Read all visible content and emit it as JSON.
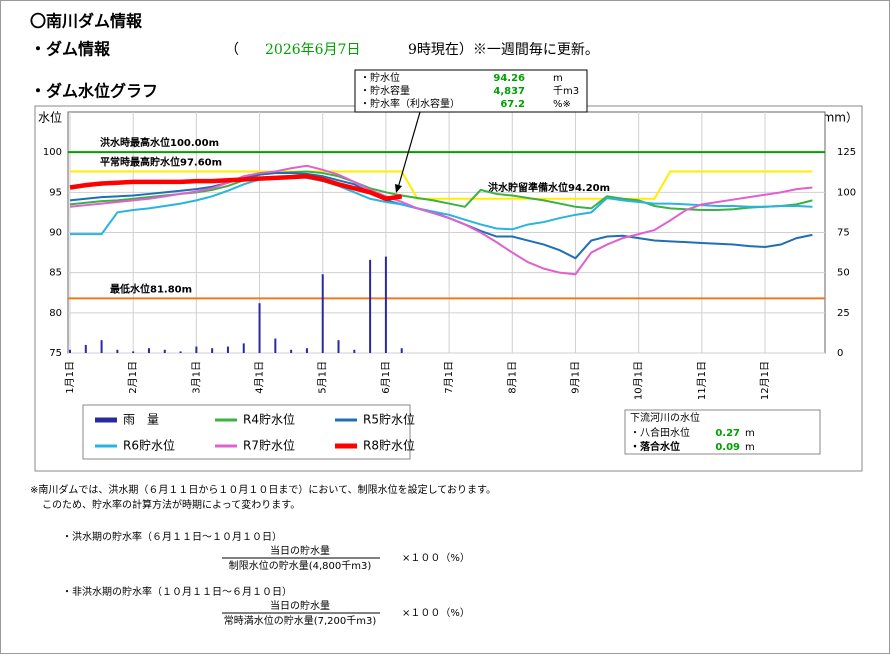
{
  "header": {
    "title": "〇南川ダム情報",
    "section1": "・ダム情報",
    "open_paren": "（",
    "date": "2026年6月7日",
    "time_note": "9時現在）※一週間毎に更新。",
    "section2": "・ダム水位グラフ"
  },
  "info_box": {
    "rows": [
      {
        "label": "・貯水位",
        "value": "94.26",
        "unit": "m"
      },
      {
        "label": "・貯水容量",
        "value": "4,837",
        "unit": "千m3"
      },
      {
        "label": "・貯水率（利水容量）",
        "value": "67.2",
        "unit": "%※"
      }
    ]
  },
  "chart_data": {
    "type": "line",
    "ylabel": "水位（m）",
    "y2label": "雨量（mm）",
    "categories": [
      "1月1日",
      null,
      null,
      null,
      "2月1日",
      null,
      null,
      null,
      "3月1日",
      null,
      null,
      null,
      "4月1日",
      null,
      null,
      null,
      "5月1日",
      null,
      null,
      null,
      "6月1日",
      null,
      null,
      null,
      "7月1日",
      null,
      null,
      null,
      "8月1日",
      null,
      null,
      null,
      "9月1日",
      null,
      null,
      null,
      "10月1日",
      null,
      null,
      null,
      "11月1日",
      null,
      null,
      null,
      "12月1日",
      null,
      null,
      null
    ],
    "ylim": [
      75,
      105
    ],
    "yticks": [
      75,
      80,
      85,
      90,
      95,
      100
    ],
    "y2lim": [
      0,
      150
    ],
    "y2ticks": [
      0,
      25,
      50,
      75,
      100,
      125
    ],
    "grid": true,
    "reference_lines": [
      {
        "label": "洪水時最高水位100.00m",
        "value": 100,
        "color": "#00a000"
      },
      {
        "label": "平常時最高貯水位97.60m",
        "value": 97.6
      },
      {
        "label": "洪水貯留準備水位94.20m",
        "value": 94.2
      },
      {
        "label": "最低水位81.80m",
        "value": 81.8,
        "color": "#f07820"
      }
    ],
    "series": [
      {
        "name": "雨　量",
        "type": "bar",
        "axis": "y2",
        "color": "#2a2aa0",
        "values": [
          2,
          5,
          8,
          2,
          1,
          3,
          2,
          1,
          4,
          3,
          4,
          6,
          31,
          9,
          2,
          3,
          49,
          8,
          2,
          58,
          60,
          3,
          null,
          null,
          null,
          null,
          null,
          null,
          null,
          null,
          null,
          null,
          null,
          null,
          null,
          null,
          null,
          null,
          null,
          null,
          null,
          null,
          null,
          null,
          null,
          null,
          null,
          null
        ]
      },
      {
        "color": "#ffee00",
        "values": [
          97.6,
          97.6,
          97.6,
          97.6,
          97.6,
          97.6,
          97.6,
          97.6,
          97.6,
          97.6,
          97.6,
          97.6,
          97.6,
          97.6,
          97.6,
          97.6,
          97.6,
          97.6,
          97.6,
          97.6,
          97.6,
          97.6,
          94.2,
          94.2,
          94.2,
          94.2,
          94.2,
          94.2,
          94.2,
          94.2,
          94.2,
          94.2,
          94.2,
          94.2,
          94.2,
          94.2,
          94.2,
          94.2,
          97.6,
          97.6,
          97.6,
          97.6,
          97.6,
          97.6,
          97.6,
          97.6,
          97.6,
          97.6
        ]
      },
      {
        "name": "R4貯水位",
        "color": "#3cb043",
        "values": [
          93.5,
          93.7,
          93.9,
          94.0,
          94.2,
          94.4,
          94.6,
          94.8,
          95.0,
          95.3,
          95.8,
          96.5,
          97.2,
          97.4,
          97.5,
          97.6,
          97.4,
          97.0,
          96.3,
          95.5,
          95.0,
          94.6,
          94.3,
          94.0,
          93.6,
          93.2,
          95.3,
          94.8,
          94.6,
          94.3,
          94.0,
          93.6,
          93.2,
          93.0,
          94.5,
          94.2,
          94.0,
          93.3,
          93.0,
          92.9,
          92.8,
          92.8,
          92.9,
          93.1,
          93.2,
          93.3,
          93.5,
          94.0
        ]
      },
      {
        "name": "R5貯水位",
        "color": "#1f6fb5",
        "values": [
          94.0,
          94.2,
          94.4,
          94.5,
          94.6,
          94.8,
          95.0,
          95.2,
          95.4,
          95.7,
          96.2,
          96.8,
          97.2,
          97.4,
          97.4,
          97.3,
          97.0,
          96.5,
          96.0,
          95.0,
          94.0,
          93.5,
          93.0,
          92.5,
          91.8,
          91.0,
          90.2,
          89.5,
          89.5,
          89.0,
          88.5,
          87.8,
          86.8,
          89.0,
          89.5,
          89.6,
          89.3,
          89.0,
          88.9,
          88.8,
          88.7,
          88.6,
          88.5,
          88.3,
          88.2,
          88.5,
          89.3,
          89.7
        ]
      },
      {
        "name": "R6貯水位",
        "color": "#27b4e0",
        "values": [
          89.8,
          89.8,
          89.8,
          92.5,
          92.8,
          93.0,
          93.3,
          93.6,
          94.0,
          94.5,
          95.2,
          96.0,
          96.6,
          96.9,
          97.0,
          96.8,
          96.4,
          95.8,
          95.0,
          94.2,
          93.8,
          93.5,
          93.0,
          92.6,
          92.2,
          91.6,
          91.0,
          90.5,
          90.4,
          91.0,
          91.3,
          91.8,
          92.2,
          92.5,
          94.3,
          94.0,
          93.8,
          93.6,
          93.6,
          93.5,
          93.4,
          93.3,
          93.3,
          93.2,
          93.2,
          93.3,
          93.3,
          93.2
        ]
      },
      {
        "name": "R7貯水位",
        "color": "#e060d0",
        "values": [
          93.2,
          93.4,
          93.6,
          93.8,
          94.0,
          94.2,
          94.5,
          94.8,
          95.1,
          95.5,
          96.2,
          97.0,
          97.4,
          97.6,
          98.0,
          98.3,
          97.8,
          97.2,
          96.3,
          95.3,
          94.5,
          93.8,
          93.0,
          92.4,
          91.8,
          91.0,
          90.0,
          88.8,
          87.5,
          86.3,
          85.5,
          85.0,
          84.8,
          87.5,
          88.5,
          89.3,
          89.8,
          90.3,
          91.5,
          92.8,
          93.5,
          93.8,
          94.1,
          94.4,
          94.7,
          95.0,
          95.4,
          95.6
        ]
      },
      {
        "name": "R8貯水位",
        "color": "#ff0000",
        "values": [
          95.6,
          95.9,
          96.1,
          96.2,
          96.3,
          96.3,
          96.3,
          96.3,
          96.4,
          96.4,
          96.5,
          96.6,
          96.7,
          96.8,
          96.9,
          97.0,
          96.6,
          96.0,
          95.5,
          95.0,
          94.2,
          94.5,
          null,
          null,
          null,
          null,
          null,
          null,
          null,
          null,
          null,
          null,
          null,
          null,
          null,
          null,
          null,
          null,
          null,
          null,
          null,
          null,
          null,
          null,
          null,
          null,
          null,
          null
        ]
      }
    ]
  },
  "downstream": {
    "title": "下流河川の水位",
    "rows": [
      {
        "label": "・八合田水位",
        "value": "0.27",
        "unit": "m"
      },
      {
        "label": "・落合水位",
        "value": "0.09",
        "unit": "m"
      }
    ]
  },
  "notes": {
    "line1": "※南川ダムでは、洪水期（６月１１日から１０月１０日まで）において、制限水位を設定しております。",
    "line2": "このため、貯水率の計算方法が時期によって変わります。",
    "formula1": {
      "title": "・洪水期の貯水率（６月１１日～１０月１０日）",
      "numerator": "当日の貯水量",
      "denominator": "制限水位の貯水量(4,800千m3)",
      "factor": "×１００（%）"
    },
    "formula2": {
      "title": "・非洪水期の貯水率（１０月１１日～６月１０日）",
      "numerator": "当日の貯水量",
      "denominator": "常時満水位の貯水量(7,200千m3)",
      "factor": "×１００（%）"
    }
  }
}
